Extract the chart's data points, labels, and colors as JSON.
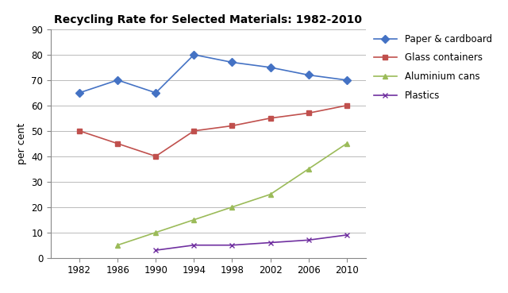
{
  "title": "Recycling Rate for Selected Materials: 1982-2010",
  "ylabel": "per cent",
  "years": [
    1982,
    1986,
    1990,
    1994,
    1998,
    2002,
    2006,
    2010
  ],
  "series": [
    {
      "label": "Paper & cardboard",
      "values": [
        65,
        70,
        65,
        80,
        77,
        75,
        72,
        70
      ],
      "color": "#4472C4",
      "marker": "D",
      "markersize": 5,
      "linewidth": 1.2
    },
    {
      "label": "Glass containers",
      "values": [
        50,
        45,
        40,
        50,
        52,
        55,
        57,
        60
      ],
      "color": "#C0504D",
      "marker": "s",
      "markersize": 5,
      "linewidth": 1.2
    },
    {
      "label": "Aluminium cans",
      "values": [
        null,
        5,
        10,
        15,
        20,
        25,
        35,
        45
      ],
      "color": "#9BBB59",
      "marker": "^",
      "markersize": 5,
      "linewidth": 1.2
    },
    {
      "label": "Plastics",
      "values": [
        null,
        null,
        3,
        5,
        5,
        6,
        7,
        9
      ],
      "color": "#7030A0",
      "marker": "x",
      "markersize": 5,
      "linewidth": 1.2
    }
  ],
  "ylim": [
    0,
    90
  ],
  "yticks": [
    0,
    10,
    20,
    30,
    40,
    50,
    60,
    70,
    80,
    90
  ],
  "xticks": [
    1982,
    1986,
    1990,
    1994,
    1998,
    2002,
    2006,
    2010
  ],
  "grid_color": "#b0b0b0",
  "bg_color": "#ffffff"
}
